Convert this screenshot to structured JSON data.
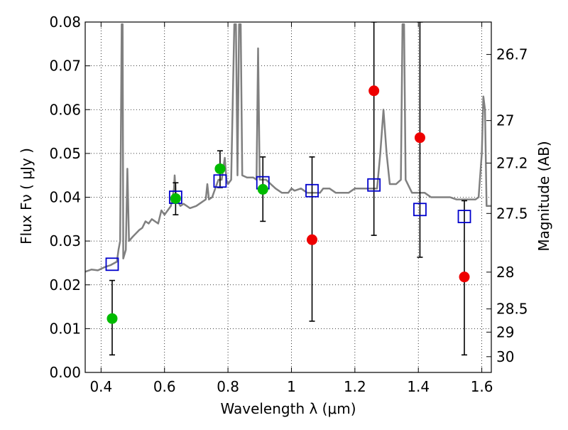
{
  "chart_data": {
    "type": "scatter",
    "xlabel": "Wavelength  λ (μm)",
    "ylabel": "Flux  Fν  ( μJy )",
    "ylabel_right": "Magnitude (AB)",
    "xlim": [
      0.35,
      1.63
    ],
    "ylim": [
      0.0,
      0.08
    ],
    "x_ticks": [
      {
        "value": 0.4,
        "label": "0.4"
      },
      {
        "value": 0.6,
        "label": "0.6"
      },
      {
        "value": 0.8,
        "label": "0.8"
      },
      {
        "value": 1.0,
        "label": "1"
      },
      {
        "value": 1.2,
        "label": "1.2"
      },
      {
        "value": 1.4,
        "label": "1.4"
      },
      {
        "value": 1.6,
        "label": "1.6"
      }
    ],
    "y_ticks": [
      {
        "value": 0.0,
        "label": "0.00"
      },
      {
        "value": 0.01,
        "label": "0.01"
      },
      {
        "value": 0.02,
        "label": "0.02"
      },
      {
        "value": 0.03,
        "label": "0.03"
      },
      {
        "value": 0.04,
        "label": "0.04"
      },
      {
        "value": 0.05,
        "label": "0.05"
      },
      {
        "value": 0.06,
        "label": "0.06"
      },
      {
        "value": 0.07,
        "label": "0.07"
      },
      {
        "value": 0.08,
        "label": "0.08"
      }
    ],
    "y2_ticks": [
      {
        "flux": 0.0726,
        "label": "26.7"
      },
      {
        "flux": 0.0575,
        "label": "27"
      },
      {
        "flux": 0.0478,
        "label": "27.2"
      },
      {
        "flux": 0.0363,
        "label": "27.5"
      },
      {
        "flux": 0.0229,
        "label": "28"
      },
      {
        "flux": 0.0145,
        "label": "28.5"
      },
      {
        "flux": 0.0092,
        "label": "29"
      },
      {
        "flux": 0.0036,
        "label": "30"
      }
    ],
    "grid": true,
    "colors": {
      "model": "#808080",
      "green": "#00bb00",
      "red": "#ee0000",
      "square": "#0000cc",
      "errorbar": "#000000"
    },
    "series": [
      {
        "kind": "line",
        "points": [
          [
            0.35,
            0.023
          ],
          [
            0.37,
            0.0235
          ],
          [
            0.39,
            0.0233
          ],
          [
            0.41,
            0.024
          ],
          [
            0.43,
            0.0245
          ],
          [
            0.45,
            0.0253
          ],
          [
            0.455,
            0.028
          ],
          [
            0.46,
            0.03
          ],
          [
            0.465,
            0.0795
          ],
          [
            0.468,
            0.0795
          ],
          [
            0.47,
            0.026
          ],
          [
            0.478,
            0.028
          ],
          [
            0.483,
            0.0465
          ],
          [
            0.488,
            0.03
          ],
          [
            0.5,
            0.031
          ],
          [
            0.52,
            0.0325
          ],
          [
            0.53,
            0.033
          ],
          [
            0.54,
            0.0345
          ],
          [
            0.55,
            0.034
          ],
          [
            0.56,
            0.035
          ],
          [
            0.58,
            0.034
          ],
          [
            0.59,
            0.037
          ],
          [
            0.6,
            0.036
          ],
          [
            0.61,
            0.037
          ],
          [
            0.62,
            0.038
          ],
          [
            0.63,
            0.042
          ],
          [
            0.632,
            0.045
          ],
          [
            0.636,
            0.04
          ],
          [
            0.65,
            0.038
          ],
          [
            0.66,
            0.0385
          ],
          [
            0.68,
            0.0375
          ],
          [
            0.7,
            0.038
          ],
          [
            0.72,
            0.039
          ],
          [
            0.73,
            0.0395
          ],
          [
            0.735,
            0.043
          ],
          [
            0.74,
            0.0395
          ],
          [
            0.75,
            0.04
          ],
          [
            0.76,
            0.042
          ],
          [
            0.77,
            0.044
          ],
          [
            0.78,
            0.044
          ],
          [
            0.79,
            0.049
          ],
          [
            0.795,
            0.044
          ],
          [
            0.8,
            0.043
          ],
          [
            0.81,
            0.044
          ],
          [
            0.82,
            0.0795
          ],
          [
            0.825,
            0.0795
          ],
          [
            0.83,
            0.045
          ],
          [
            0.835,
            0.0795
          ],
          [
            0.84,
            0.0795
          ],
          [
            0.845,
            0.045
          ],
          [
            0.86,
            0.0445
          ],
          [
            0.88,
            0.0445
          ],
          [
            0.89,
            0.044
          ],
          [
            0.895,
            0.074
          ],
          [
            0.9,
            0.044
          ],
          [
            0.92,
            0.044
          ],
          [
            0.95,
            0.042
          ],
          [
            0.97,
            0.041
          ],
          [
            0.99,
            0.041
          ],
          [
            1.0,
            0.042
          ],
          [
            1.01,
            0.0415
          ],
          [
            1.03,
            0.042
          ],
          [
            1.05,
            0.041
          ],
          [
            1.07,
            0.041
          ],
          [
            1.09,
            0.041
          ],
          [
            1.1,
            0.042
          ],
          [
            1.12,
            0.042
          ],
          [
            1.14,
            0.041
          ],
          [
            1.16,
            0.041
          ],
          [
            1.18,
            0.041
          ],
          [
            1.2,
            0.042
          ],
          [
            1.22,
            0.042
          ],
          [
            1.24,
            0.042
          ],
          [
            1.25,
            0.042
          ],
          [
            1.27,
            0.042
          ],
          [
            1.28,
            0.05
          ],
          [
            1.29,
            0.06
          ],
          [
            1.3,
            0.05
          ],
          [
            1.31,
            0.043
          ],
          [
            1.33,
            0.043
          ],
          [
            1.345,
            0.044
          ],
          [
            1.35,
            0.0795
          ],
          [
            1.355,
            0.0795
          ],
          [
            1.36,
            0.044
          ],
          [
            1.38,
            0.041
          ],
          [
            1.4,
            0.041
          ],
          [
            1.42,
            0.041
          ],
          [
            1.44,
            0.04
          ],
          [
            1.46,
            0.04
          ],
          [
            1.48,
            0.04
          ],
          [
            1.5,
            0.04
          ],
          [
            1.52,
            0.0395
          ],
          [
            1.54,
            0.0395
          ],
          [
            1.56,
            0.0395
          ],
          [
            1.58,
            0.0395
          ],
          [
            1.59,
            0.04
          ],
          [
            1.6,
            0.05
          ],
          [
            1.605,
            0.063
          ],
          [
            1.61,
            0.06
          ],
          [
            1.615,
            0.038
          ],
          [
            1.63,
            0.038
          ]
        ]
      },
      {
        "kind": "squares",
        "points": [
          [
            0.435,
            0.0247
          ],
          [
            0.635,
            0.04
          ],
          [
            0.775,
            0.0437
          ],
          [
            0.91,
            0.0433
          ],
          [
            1.065,
            0.0415
          ],
          [
            1.26,
            0.0428
          ],
          [
            1.405,
            0.0372
          ],
          [
            1.545,
            0.0356
          ]
        ]
      },
      {
        "kind": "circles-green",
        "points": [
          [
            0.435,
            0.0123
          ],
          [
            0.635,
            0.0397
          ],
          [
            0.775,
            0.0465
          ],
          [
            0.91,
            0.0418
          ]
        ]
      },
      {
        "kind": "circles-red",
        "points": [
          [
            1.065,
            0.0303
          ],
          [
            1.26,
            0.0643
          ],
          [
            1.405,
            0.0536
          ],
          [
            1.545,
            0.0218
          ]
        ]
      },
      {
        "kind": "errorbars",
        "points": [
          {
            "x": 0.435,
            "low": 0.004,
            "high": 0.021
          },
          {
            "x": 0.635,
            "low": 0.036,
            "high": 0.0433
          },
          {
            "x": 0.775,
            "low": 0.0422,
            "high": 0.0506
          },
          {
            "x": 0.91,
            "low": 0.0345,
            "high": 0.0492
          },
          {
            "x": 1.065,
            "low": 0.0117,
            "high": 0.0492
          },
          {
            "x": 1.26,
            "low": 0.0313,
            "high": 0.08
          },
          {
            "x": 1.405,
            "low": 0.0263,
            "high": 0.08
          },
          {
            "x": 1.545,
            "low": 0.004,
            "high": 0.0392
          }
        ]
      }
    ]
  }
}
